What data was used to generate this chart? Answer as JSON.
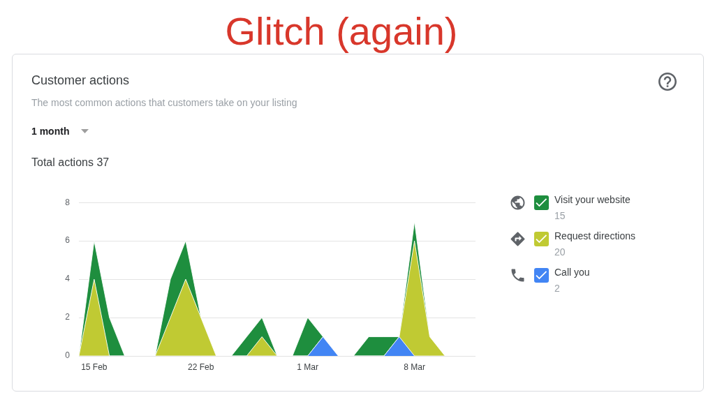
{
  "chart_data": {
    "type": "area",
    "title": "Glitch (again)",
    "subtitle": "Customer actions",
    "annotations": [
      "The most common actions that customers take on your listing",
      "1 month",
      "Total actions 37",
      "15",
      "20",
      "2"
    ],
    "categories": [
      null,
      "15 Feb",
      null,
      null,
      null,
      null,
      null,
      null,
      "22 Feb",
      null,
      null,
      null,
      null,
      null,
      null,
      "1 Mar",
      null,
      null,
      null,
      null,
      null,
      null,
      "8 Mar",
      null,
      null,
      null,
      null
    ],
    "series": [
      {
        "name": "Call you",
        "color": "#4285f4",
        "values": [
          0,
          0,
          0,
          0,
          0,
          0,
          0,
          0,
          0,
          0,
          0,
          0,
          0,
          0,
          0,
          0,
          1,
          0,
          0,
          0,
          0,
          1,
          0,
          0,
          0,
          0,
          0
        ]
      },
      {
        "name": "Request directions",
        "color": "#c0ca33",
        "values": [
          0,
          4,
          0,
          0,
          0,
          0,
          2,
          4,
          2,
          0,
          0,
          0,
          1,
          0,
          0,
          0,
          0,
          0,
          0,
          0,
          0,
          0,
          6,
          1,
          0,
          0,
          0
        ]
      },
      {
        "name": "Visit your website",
        "color": "#1e8e3e",
        "values": [
          0,
          2,
          2,
          0,
          0,
          0,
          2,
          2,
          0,
          0,
          0,
          1,
          1,
          0,
          0,
          2,
          0,
          0,
          0,
          1,
          1,
          0,
          1,
          0,
          0,
          0,
          0
        ]
      }
    ],
    "stacked": true,
    "ylim": [
      0,
      8
    ],
    "yticks": [
      0,
      2,
      4,
      6,
      8
    ],
    "grid": "y",
    "legend": "right",
    "marker": "none"
  }
}
